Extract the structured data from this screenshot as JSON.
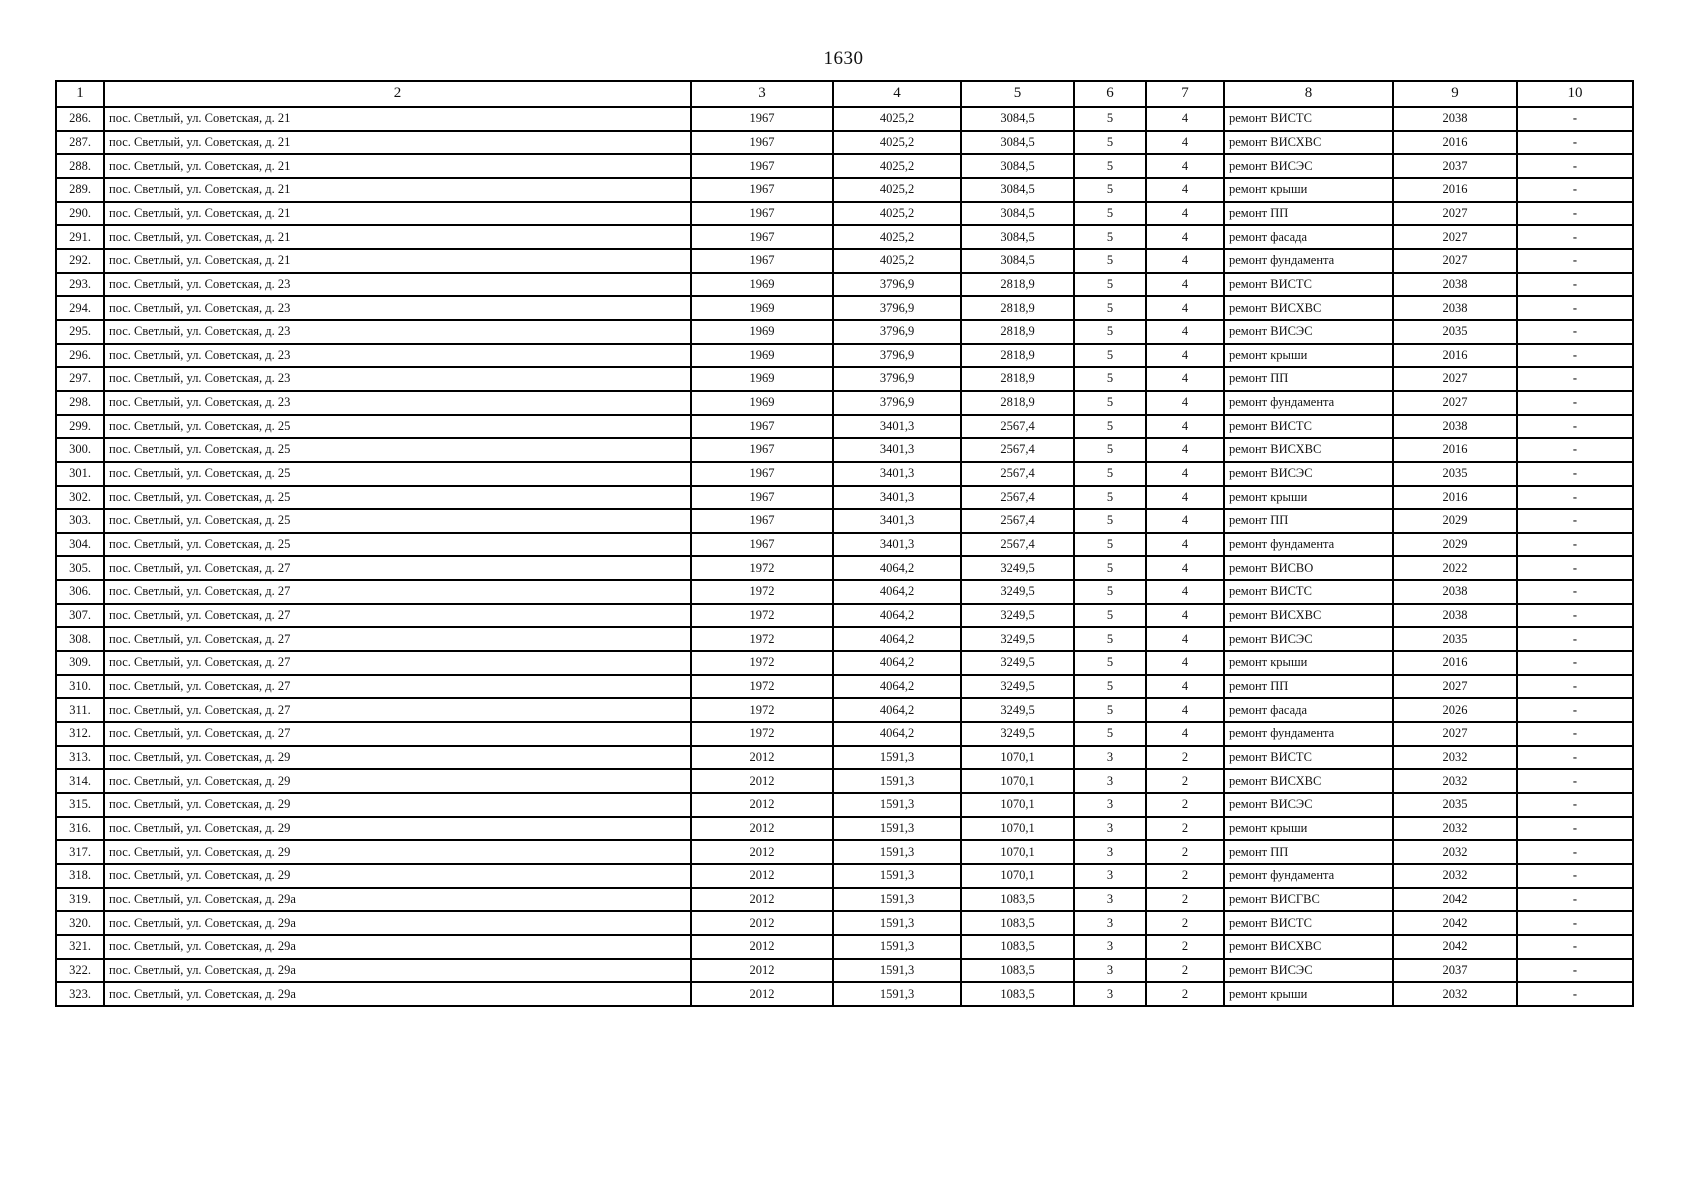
{
  "page": {
    "number": "1630"
  },
  "table": {
    "columns": [
      "1",
      "2",
      "3",
      "4",
      "5",
      "6",
      "7",
      "8",
      "9",
      "10"
    ],
    "rows": [
      [
        "286.",
        "пос. Светлый, ул. Советская, д. 21",
        "1967",
        "4025,2",
        "3084,5",
        "5",
        "4",
        "ремонт ВИСТС",
        "2038",
        "-"
      ],
      [
        "287.",
        "пос. Светлый, ул. Советская, д. 21",
        "1967",
        "4025,2",
        "3084,5",
        "5",
        "4",
        "ремонт ВИСХВС",
        "2016",
        "-"
      ],
      [
        "288.",
        "пос. Светлый, ул. Советская, д. 21",
        "1967",
        "4025,2",
        "3084,5",
        "5",
        "4",
        "ремонт ВИСЭС",
        "2037",
        "-"
      ],
      [
        "289.",
        "пос. Светлый, ул. Советская, д. 21",
        "1967",
        "4025,2",
        "3084,5",
        "5",
        "4",
        "ремонт крыши",
        "2016",
        "-"
      ],
      [
        "290.",
        "пос. Светлый, ул. Советская, д. 21",
        "1967",
        "4025,2",
        "3084,5",
        "5",
        "4",
        "ремонт ПП",
        "2027",
        "-"
      ],
      [
        "291.",
        "пос. Светлый, ул. Советская, д. 21",
        "1967",
        "4025,2",
        "3084,5",
        "5",
        "4",
        "ремонт фасада",
        "2027",
        "-"
      ],
      [
        "292.",
        "пос. Светлый, ул. Советская, д. 21",
        "1967",
        "4025,2",
        "3084,5",
        "5",
        "4",
        "ремонт фундамента",
        "2027",
        "-"
      ],
      [
        "293.",
        "пос. Светлый, ул. Советская, д. 23",
        "1969",
        "3796,9",
        "2818,9",
        "5",
        "4",
        "ремонт ВИСТС",
        "2038",
        "-"
      ],
      [
        "294.",
        "пос. Светлый, ул. Советская, д. 23",
        "1969",
        "3796,9",
        "2818,9",
        "5",
        "4",
        "ремонт ВИСХВС",
        "2038",
        "-"
      ],
      [
        "295.",
        "пос. Светлый, ул. Советская, д. 23",
        "1969",
        "3796,9",
        "2818,9",
        "5",
        "4",
        "ремонт ВИСЭС",
        "2035",
        "-"
      ],
      [
        "296.",
        "пос. Светлый, ул. Советская, д. 23",
        "1969",
        "3796,9",
        "2818,9",
        "5",
        "4",
        "ремонт крыши",
        "2016",
        "-"
      ],
      [
        "297.",
        "пос. Светлый, ул. Советская, д. 23",
        "1969",
        "3796,9",
        "2818,9",
        "5",
        "4",
        "ремонт ПП",
        "2027",
        "-"
      ],
      [
        "298.",
        "пос. Светлый, ул. Советская, д. 23",
        "1969",
        "3796,9",
        "2818,9",
        "5",
        "4",
        "ремонт фундамента",
        "2027",
        "-"
      ],
      [
        "299.",
        "пос. Светлый, ул. Советская, д. 25",
        "1967",
        "3401,3",
        "2567,4",
        "5",
        "4",
        "ремонт ВИСТС",
        "2038",
        "-"
      ],
      [
        "300.",
        "пос. Светлый, ул. Советская, д. 25",
        "1967",
        "3401,3",
        "2567,4",
        "5",
        "4",
        "ремонт ВИСХВС",
        "2016",
        "-"
      ],
      [
        "301.",
        "пос. Светлый, ул. Советская, д. 25",
        "1967",
        "3401,3",
        "2567,4",
        "5",
        "4",
        "ремонт ВИСЭС",
        "2035",
        "-"
      ],
      [
        "302.",
        "пос. Светлый, ул. Советская, д. 25",
        "1967",
        "3401,3",
        "2567,4",
        "5",
        "4",
        "ремонт крыши",
        "2016",
        "-"
      ],
      [
        "303.",
        "пос. Светлый, ул. Советская, д. 25",
        "1967",
        "3401,3",
        "2567,4",
        "5",
        "4",
        "ремонт ПП",
        "2029",
        "-"
      ],
      [
        "304.",
        "пос. Светлый, ул. Советская, д. 25",
        "1967",
        "3401,3",
        "2567,4",
        "5",
        "4",
        "ремонт фундамента",
        "2029",
        "-"
      ],
      [
        "305.",
        "пос. Светлый, ул. Советская, д. 27",
        "1972",
        "4064,2",
        "3249,5",
        "5",
        "4",
        "ремонт ВИСВО",
        "2022",
        "-"
      ],
      [
        "306.",
        "пос. Светлый, ул. Советская, д. 27",
        "1972",
        "4064,2",
        "3249,5",
        "5",
        "4",
        "ремонт ВИСТС",
        "2038",
        "-"
      ],
      [
        "307.",
        "пос. Светлый, ул. Советская, д. 27",
        "1972",
        "4064,2",
        "3249,5",
        "5",
        "4",
        "ремонт ВИСХВС",
        "2038",
        "-"
      ],
      [
        "308.",
        "пос. Светлый, ул. Советская, д. 27",
        "1972",
        "4064,2",
        "3249,5",
        "5",
        "4",
        "ремонт ВИСЭС",
        "2035",
        "-"
      ],
      [
        "309.",
        "пос. Светлый, ул. Советская, д. 27",
        "1972",
        "4064,2",
        "3249,5",
        "5",
        "4",
        "ремонт крыши",
        "2016",
        "-"
      ],
      [
        "310.",
        "пос. Светлый, ул. Советская, д. 27",
        "1972",
        "4064,2",
        "3249,5",
        "5",
        "4",
        "ремонт ПП",
        "2027",
        "-"
      ],
      [
        "311.",
        "пос. Светлый, ул. Советская, д. 27",
        "1972",
        "4064,2",
        "3249,5",
        "5",
        "4",
        "ремонт фасада",
        "2026",
        "-"
      ],
      [
        "312.",
        "пос. Светлый, ул. Советская, д. 27",
        "1972",
        "4064,2",
        "3249,5",
        "5",
        "4",
        "ремонт фундамента",
        "2027",
        "-"
      ],
      [
        "313.",
        "пос. Светлый, ул. Советская, д. 29",
        "2012",
        "1591,3",
        "1070,1",
        "3",
        "2",
        "ремонт ВИСТС",
        "2032",
        "-"
      ],
      [
        "314.",
        "пос. Светлый, ул. Советская, д. 29",
        "2012",
        "1591,3",
        "1070,1",
        "3",
        "2",
        "ремонт ВИСХВС",
        "2032",
        "-"
      ],
      [
        "315.",
        "пос. Светлый, ул. Советская, д. 29",
        "2012",
        "1591,3",
        "1070,1",
        "3",
        "2",
        "ремонт ВИСЭС",
        "2035",
        "-"
      ],
      [
        "316.",
        "пос. Светлый, ул. Советская, д. 29",
        "2012",
        "1591,3",
        "1070,1",
        "3",
        "2",
        "ремонт крыши",
        "2032",
        "-"
      ],
      [
        "317.",
        "пос. Светлый, ул. Советская, д. 29",
        "2012",
        "1591,3",
        "1070,1",
        "3",
        "2",
        "ремонт ПП",
        "2032",
        "-"
      ],
      [
        "318.",
        "пос. Светлый, ул. Советская, д. 29",
        "2012",
        "1591,3",
        "1070,1",
        "3",
        "2",
        "ремонт фундамента",
        "2032",
        "-"
      ],
      [
        "319.",
        "пос. Светлый, ул. Советская, д. 29а",
        "2012",
        "1591,3",
        "1083,5",
        "3",
        "2",
        "ремонт ВИСГВС",
        "2042",
        "-"
      ],
      [
        "320.",
        "пос. Светлый, ул. Советская, д. 29а",
        "2012",
        "1591,3",
        "1083,5",
        "3",
        "2",
        "ремонт ВИСТС",
        "2042",
        "-"
      ],
      [
        "321.",
        "пос. Светлый, ул. Советская, д. 29а",
        "2012",
        "1591,3",
        "1083,5",
        "3",
        "2",
        "ремонт ВИСХВС",
        "2042",
        "-"
      ],
      [
        "322.",
        "пос. Светлый, ул. Советская, д. 29а",
        "2012",
        "1591,3",
        "1083,5",
        "3",
        "2",
        "ремонт ВИСЭС",
        "2037",
        "-"
      ],
      [
        "323.",
        "пос. Светлый, ул. Советская, д. 29а",
        "2012",
        "1591,3",
        "1083,5",
        "3",
        "2",
        "ремонт крыши",
        "2032",
        "-"
      ]
    ]
  }
}
